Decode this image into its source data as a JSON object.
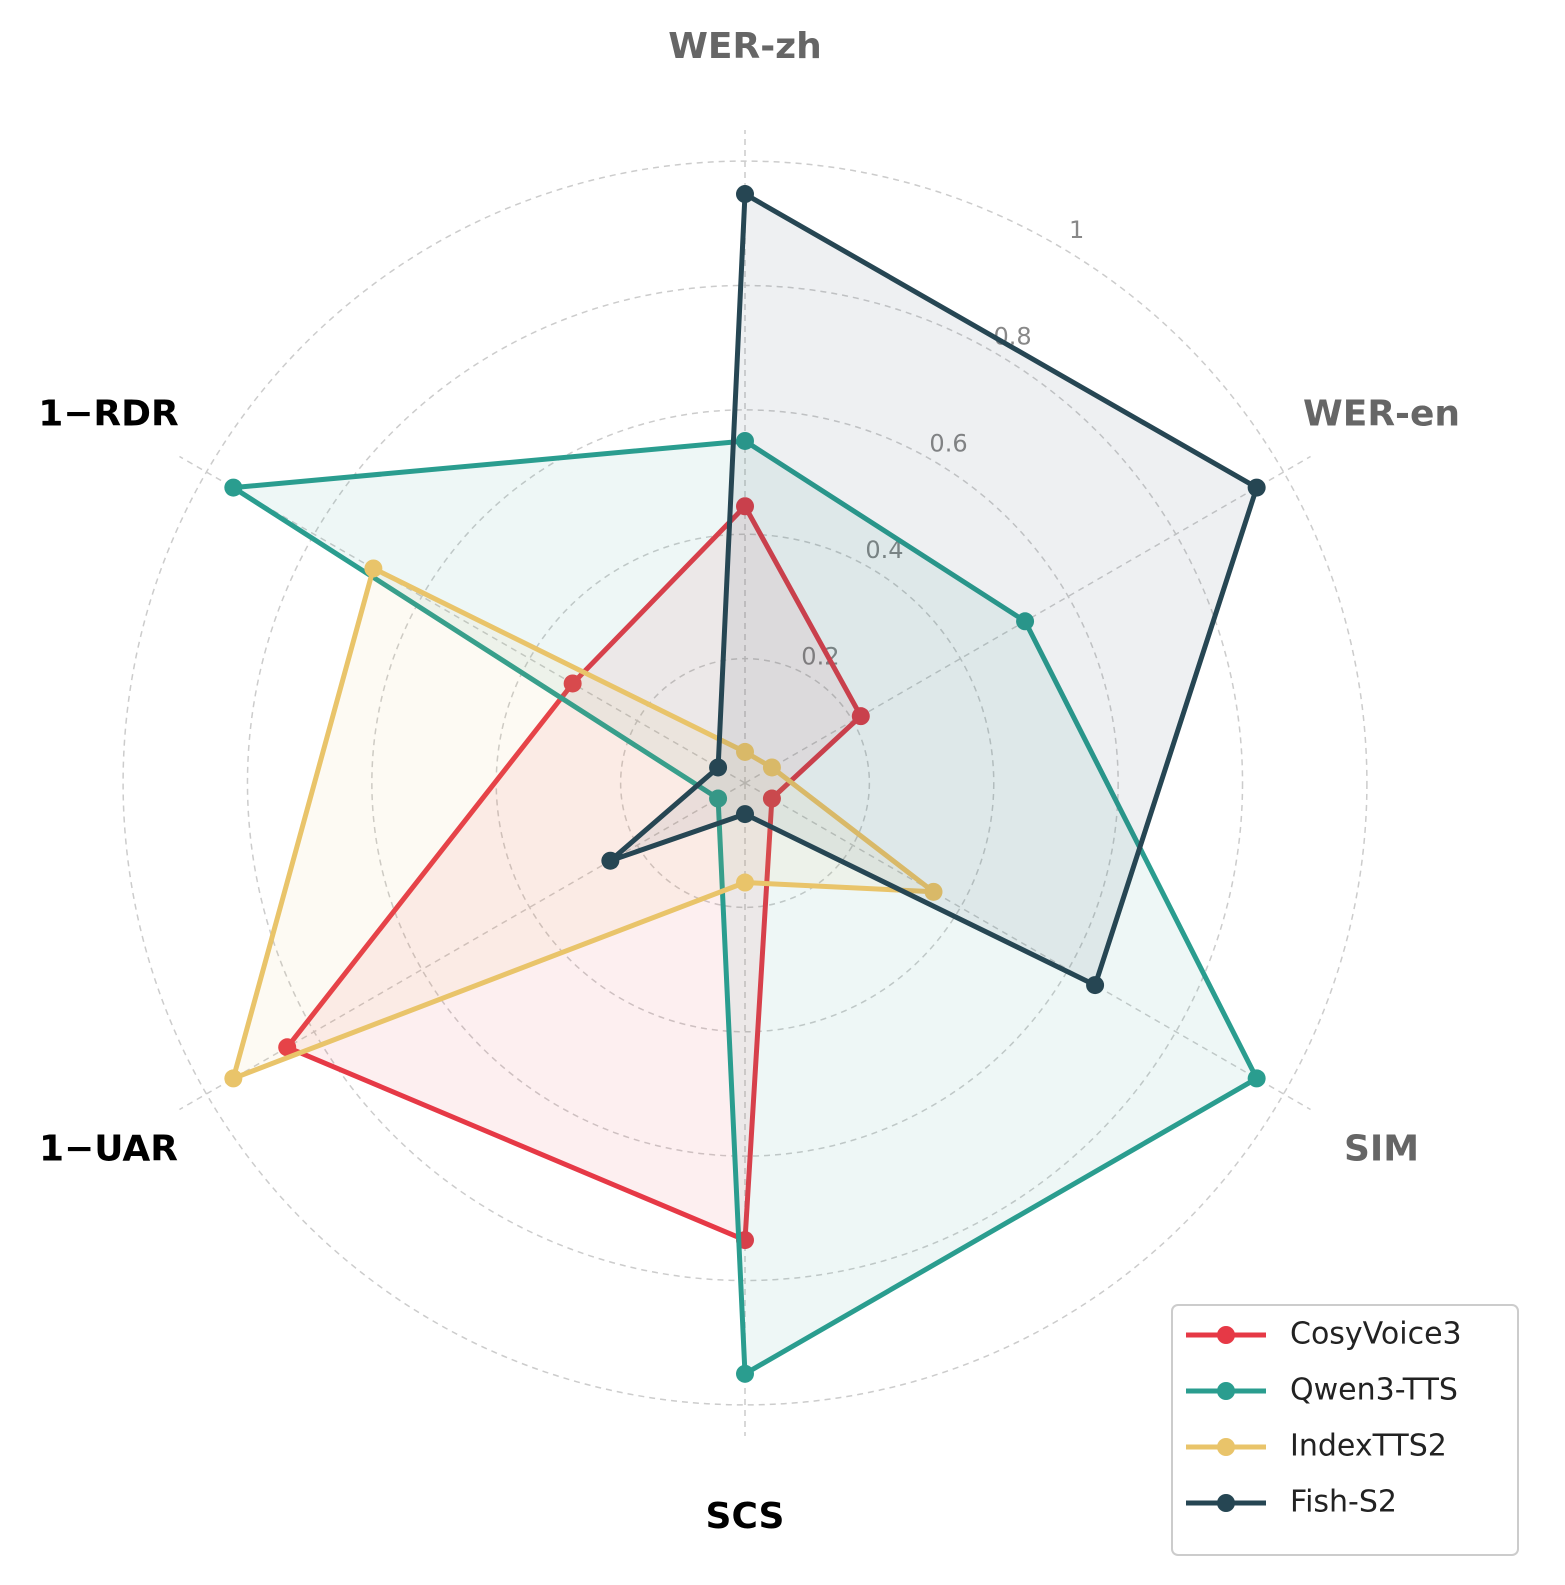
{
  "chart_data": {
    "type": "radar",
    "categories": [
      "WER-zh",
      "WER-en",
      "SIM",
      "SCS",
      "1−UAR",
      "1−RDR"
    ],
    "category_colors": [
      "#666666",
      "#666666",
      "#666666",
      "#000000",
      "#000000",
      "#000000"
    ],
    "rlim": [
      0,
      1.05
    ],
    "rticks": [
      0.2,
      0.4,
      0.6,
      0.8,
      1.0
    ],
    "grid": true,
    "legend": "lower right",
    "series": [
      {
        "name": "CosyVoice3",
        "color": "#e63946",
        "values": [
          0.445,
          0.215,
          0.05,
          0.735,
          0.85,
          0.32
        ]
      },
      {
        "name": "Qwen3-TTS",
        "color": "#2a9d8f",
        "values": [
          0.55,
          0.52,
          0.95,
          0.95,
          0.05,
          0.95
        ]
      },
      {
        "name": "IndexTTS2",
        "color": "#e9c46a",
        "values": [
          0.05,
          0.05,
          0.35,
          0.16,
          0.95,
          0.69
        ]
      },
      {
        "name": "Fish-S2",
        "color": "#264653",
        "values": [
          0.947,
          0.95,
          0.65,
          0.05,
          0.25,
          0.05
        ]
      }
    ]
  }
}
